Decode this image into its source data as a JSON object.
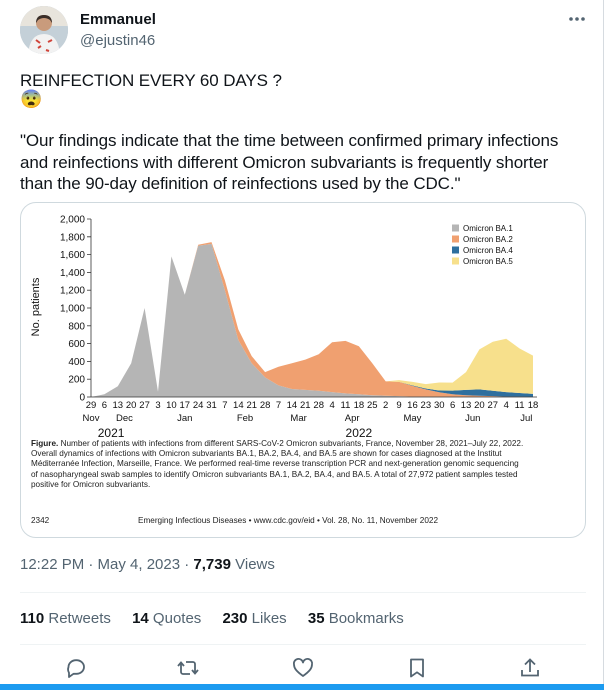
{
  "author": {
    "name": "Emmanuel",
    "handle": "@ejustin46",
    "avatar_icon": "person-avatar"
  },
  "tweet": {
    "line1": "REINFECTION EVERY 60 DAYS ?",
    "emoji": "😨",
    "quote_lines": [
      "\"Our findings indicate that the time between confirmed primary infections",
      "and reinfections with different Omicron subvariants is frequently shorter",
      "than the 90-day definition of reinfections used by the CDC.\""
    ]
  },
  "figure": {
    "caption_bold": "Figure.",
    "caption_lines": [
      " Number of patients with infections from different SARS-CoV-2 Omicron subvariants, France, November 28, 2021–July 22, 2022.",
      "Overall dynamics of infections with Omicron subvariants BA.1, BA.2, BA.4, and BA.5 are shown for cases diagnosed at the Institut",
      "Méditerranée Infection, Marseille, France. We performed real-time reverse transcription PCR and next-generation genomic sequencing",
      "of nasopharyngeal swab samples to identify Omicron subvariants BA.1, BA.2, BA.4, and BA.5. A total of 27,972 patient samples tested",
      "positive for Omicron subvariants."
    ],
    "page_number": "2342",
    "journal_line": "Emerging Infectious Diseases • www.cdc.gov/eid • Vol. 28, No. 11, November 2022"
  },
  "chart_data": {
    "type": "area",
    "ylabel": "No. patients",
    "ylim": [
      0,
      2000
    ],
    "yticks": [
      "0",
      "200",
      "400",
      "600",
      "800",
      "1,000",
      "1,200",
      "1,400",
      "1,600",
      "1,800",
      "2,000"
    ],
    "x_day_labels": [
      "29",
      "6",
      "13",
      "20",
      "27",
      "3",
      "10",
      "17",
      "24",
      "31",
      "7",
      "14",
      "21",
      "28",
      "7",
      "14",
      "21",
      "28",
      "4",
      "11",
      "18",
      "25",
      "2",
      "9",
      "16",
      "23",
      "30",
      "6",
      "13",
      "20",
      "27",
      "4",
      "11",
      "18"
    ],
    "months": [
      {
        "label": "Nov",
        "index": 0
      },
      {
        "label": "Dec",
        "index": 2.5
      },
      {
        "label": "Jan",
        "index": 7
      },
      {
        "label": "Feb",
        "index": 11.5
      },
      {
        "label": "Mar",
        "index": 15.5
      },
      {
        "label": "Apr",
        "index": 19.5
      },
      {
        "label": "May",
        "index": 24
      },
      {
        "label": "Jun",
        "index": 28.5
      },
      {
        "label": "Jul",
        "index": 32.5
      }
    ],
    "years": [
      {
        "label": "2021",
        "index": 1.5
      },
      {
        "label": "2022",
        "index": 20
      }
    ],
    "series": [
      {
        "name": "Omicron BA.1",
        "color": "#b5b5b5",
        "values": [
          0,
          30,
          120,
          380,
          1000,
          60,
          1580,
          1150,
          1700,
          1720,
          1200,
          640,
          380,
          220,
          130,
          90,
          80,
          70,
          55,
          40,
          30,
          20,
          15,
          10,
          5,
          5,
          3,
          2,
          0,
          0,
          0,
          0,
          0,
          0
        ]
      },
      {
        "name": "Omicron BA.2",
        "color": "#f0a070",
        "values": [
          0,
          0,
          0,
          0,
          0,
          0,
          0,
          0,
          10,
          20,
          110,
          120,
          80,
          60,
          210,
          290,
          340,
          410,
          560,
          590,
          540,
          360,
          160,
          160,
          120,
          80,
          50,
          30,
          20,
          15,
          10,
          5,
          5,
          0
        ]
      },
      {
        "name": "Omicron BA.4",
        "color": "#2e6f9e",
        "values": [
          0,
          0,
          0,
          0,
          0,
          0,
          0,
          0,
          0,
          0,
          0,
          0,
          0,
          0,
          0,
          0,
          0,
          0,
          0,
          0,
          0,
          0,
          0,
          0,
          5,
          10,
          20,
          40,
          60,
          70,
          60,
          50,
          40,
          35
        ]
      },
      {
        "name": "Omicron BA.5",
        "color": "#f7e08c",
        "values": [
          0,
          0,
          0,
          0,
          0,
          0,
          0,
          0,
          0,
          0,
          0,
          0,
          0,
          0,
          0,
          0,
          0,
          0,
          0,
          0,
          0,
          0,
          0,
          20,
          40,
          50,
          90,
          90,
          200,
          450,
          550,
          600,
          500,
          430
        ]
      }
    ]
  },
  "timestamp": {
    "time_date": "12:22 PM · May 4, 2023 · ",
    "views_count": "7,739",
    "views_label": " Views"
  },
  "stats": [
    {
      "count": "110",
      "label": " Retweets"
    },
    {
      "count": "14",
      "label": " Quotes"
    },
    {
      "count": "230",
      "label": " Likes"
    },
    {
      "count": "35",
      "label": " Bookmarks"
    }
  ],
  "actions": {
    "reply_icon": "reply-icon",
    "retweet_icon": "retweet-icon",
    "like_icon": "heart-icon",
    "bookmark_icon": "bookmark-icon",
    "share_icon": "share-icon"
  }
}
